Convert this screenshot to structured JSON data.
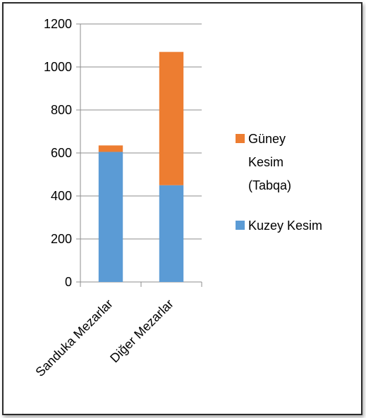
{
  "chart_data": {
    "type": "bar",
    "stacked": true,
    "categories": [
      "Sanduka Mezarlar",
      "Diğer Mezarlar"
    ],
    "series": [
      {
        "name": "Kuzey Kesim",
        "values": [
          605,
          450
        ],
        "color": "#5b9bd5"
      },
      {
        "name": "Güney Kesim (Tabqa)",
        "values": [
          30,
          620
        ],
        "color": "#ed7d31"
      }
    ],
    "ylim": [
      0,
      1200
    ],
    "yticks": [
      "0",
      "200",
      "400",
      "600",
      "800",
      "1000",
      "1200"
    ],
    "grid": true,
    "legend_position": "right",
    "legend_order": [
      1,
      0
    ]
  }
}
